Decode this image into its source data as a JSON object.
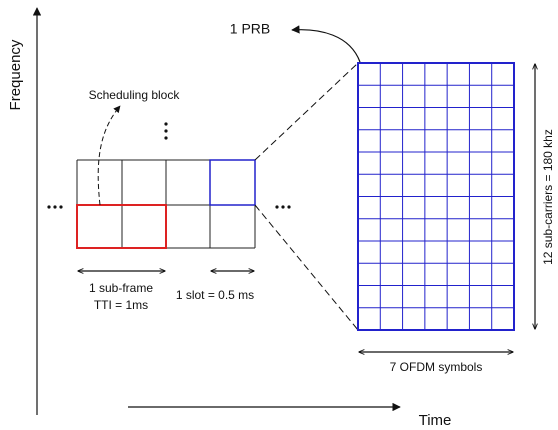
{
  "axes": {
    "frequency": "Frequency",
    "time": "Time"
  },
  "labels": {
    "prb": "1 PRB",
    "scheduling_block": "Scheduling block",
    "sub_frame": "1 sub-frame",
    "tti": "TTI = 1ms",
    "slot": "1 slot = 0.5 ms",
    "ofdm": "7 OFDM symbols",
    "subcarriers": "12 sub-carriers = 180 khz"
  }
}
